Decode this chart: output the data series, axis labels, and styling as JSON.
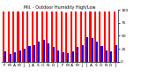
{
  "title": "Mil. - Outdoor Humidity High/Low",
  "months": [
    "F",
    "M",
    "A",
    "M",
    "J",
    "J",
    "A",
    "S",
    "O",
    "N",
    "D",
    "J",
    "F",
    "M",
    "A",
    "M",
    "J",
    "J",
    "A",
    "S",
    "O",
    "N",
    "D",
    "J"
  ],
  "highs": [
    97,
    97,
    97,
    97,
    97,
    97,
    97,
    97,
    97,
    97,
    97,
    97,
    97,
    95,
    97,
    97,
    97,
    97,
    97,
    97,
    97,
    97,
    97,
    97
  ],
  "lows": [
    20,
    14,
    18,
    22,
    25,
    30,
    32,
    38,
    42,
    35,
    28,
    22,
    18,
    16,
    20,
    28,
    32,
    48,
    45,
    38,
    30,
    22,
    20,
    32
  ],
  "high_color": "#ff0000",
  "low_color": "#0000ff",
  "bg_color": "#ffffff",
  "ylabel_right": [
    "100",
    "75",
    "50",
    "25",
    "0"
  ],
  "yticks": [
    100,
    75,
    50,
    25,
    0
  ],
  "ylim": [
    0,
    100
  ],
  "bar_width": 0.38
}
